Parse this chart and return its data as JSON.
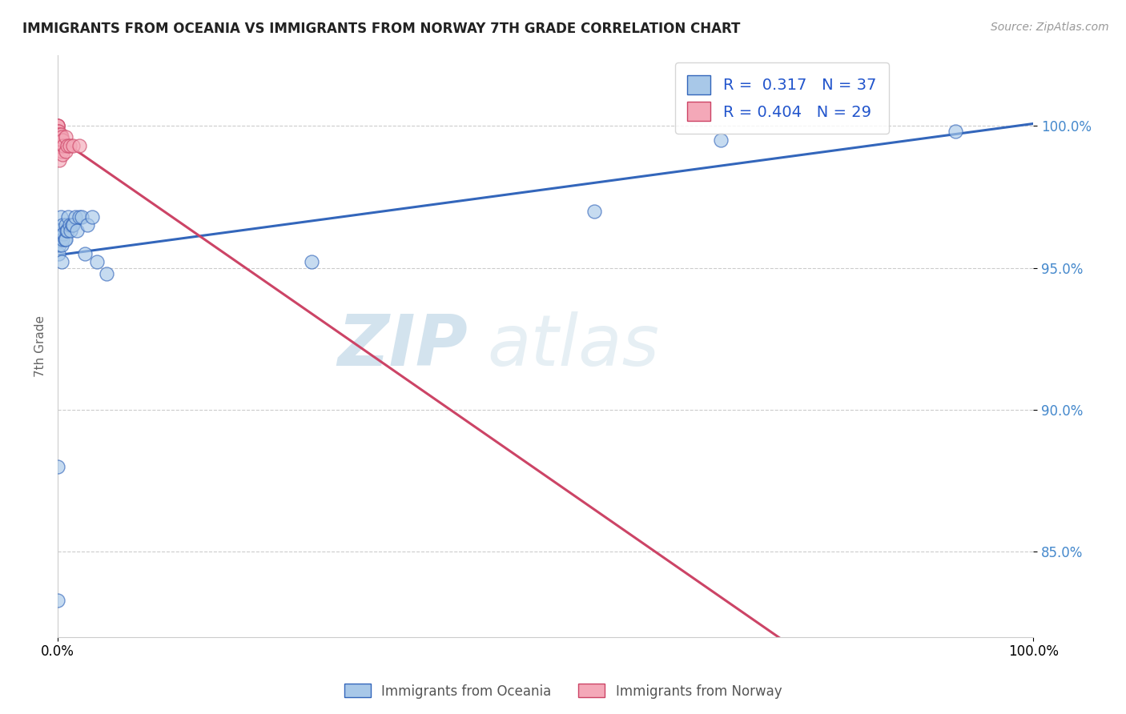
{
  "title": "IMMIGRANTS FROM OCEANIA VS IMMIGRANTS FROM NORWAY 7TH GRADE CORRELATION CHART",
  "source": "Source: ZipAtlas.com",
  "ylabel": "7th Grade",
  "xlabel": "",
  "xlim": [
    0.0,
    1.0
  ],
  "ylim": [
    0.82,
    1.025
  ],
  "yticks": [
    0.85,
    0.9,
    0.95,
    1.0
  ],
  "ytick_labels": [
    "85.0%",
    "90.0%",
    "95.0%",
    "100.0%"
  ],
  "xticks": [
    0.0,
    1.0
  ],
  "xtick_labels": [
    "0.0%",
    "100.0%"
  ],
  "legend_R1": "0.317",
  "legend_N1": "37",
  "legend_R2": "0.404",
  "legend_N2": "29",
  "color_oceania": "#a8c8e8",
  "color_norway": "#f4a8b8",
  "trendline_color_oceania": "#3366bb",
  "trendline_color_norway": "#cc4466",
  "watermark_zip": "ZIP",
  "watermark_atlas": "atlas",
  "oceania_x": [
    0.0,
    0.0,
    0.0,
    0.001,
    0.001,
    0.002,
    0.002,
    0.003,
    0.003,
    0.004,
    0.004,
    0.005,
    0.005,
    0.006,
    0.007,
    0.008,
    0.008,
    0.009,
    0.01,
    0.011,
    0.012,
    0.013,
    0.015,
    0.016,
    0.018,
    0.02,
    0.022,
    0.025,
    0.028,
    0.03,
    0.035,
    0.04,
    0.05,
    0.26,
    0.55,
    0.68,
    0.92
  ],
  "oceania_y": [
    0.833,
    0.88,
    0.963,
    0.955,
    0.96,
    0.958,
    0.962,
    0.963,
    0.968,
    0.952,
    0.958,
    0.96,
    0.965,
    0.962,
    0.96,
    0.96,
    0.965,
    0.963,
    0.963,
    0.968,
    0.965,
    0.963,
    0.965,
    0.965,
    0.968,
    0.963,
    0.968,
    0.968,
    0.955,
    0.965,
    0.968,
    0.952,
    0.948,
    0.952,
    0.97,
    0.995,
    0.998
  ],
  "norway_x": [
    0.0,
    0.0,
    0.0,
    0.0,
    0.0,
    0.0,
    0.0,
    0.0,
    0.0,
    0.0,
    0.001,
    0.001,
    0.001,
    0.002,
    0.002,
    0.002,
    0.003,
    0.003,
    0.004,
    0.004,
    0.005,
    0.005,
    0.006,
    0.008,
    0.008,
    0.01,
    0.012,
    0.016,
    0.022
  ],
  "norway_y": [
    1.0,
    1.0,
    1.0,
    0.998,
    0.997,
    0.997,
    0.996,
    0.996,
    0.995,
    0.993,
    0.998,
    0.996,
    0.994,
    0.997,
    0.993,
    0.988,
    0.997,
    0.993,
    0.996,
    0.991,
    0.995,
    0.99,
    0.993,
    0.996,
    0.991,
    0.993,
    0.993,
    0.993,
    0.993
  ]
}
